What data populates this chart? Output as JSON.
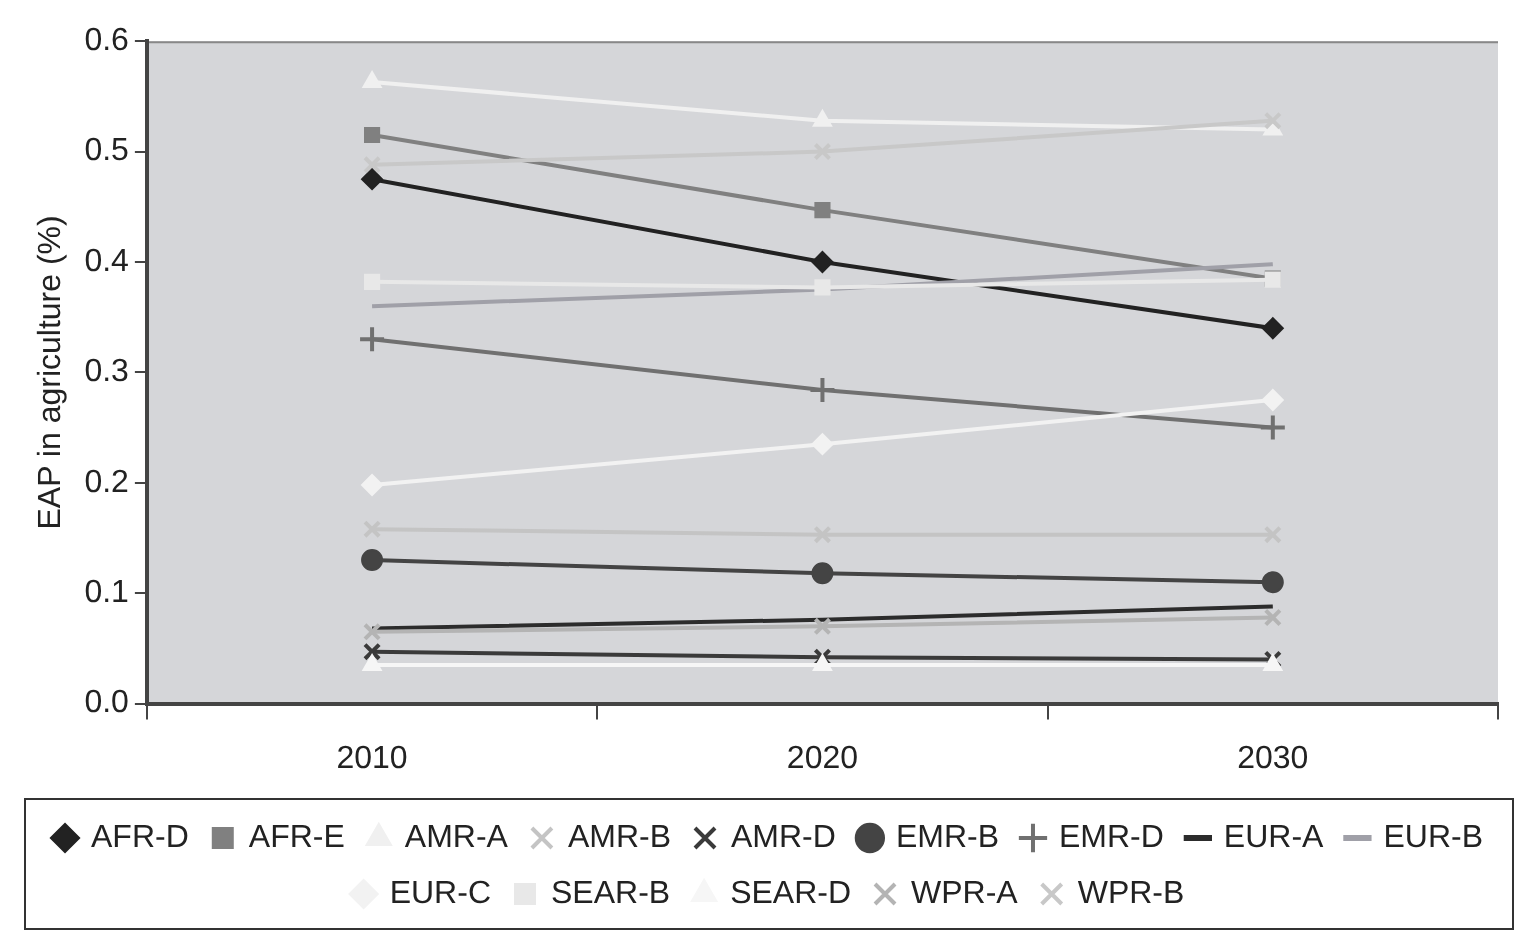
{
  "chart_data": {
    "type": "line",
    "ylabel": "EAP in agriculture (%)",
    "categories": [
      "2010",
      "2020",
      "2030"
    ],
    "ylim": [
      0,
      0.6
    ],
    "yticks": [
      {
        "value": 0,
        "label": "0.0"
      },
      {
        "value": 0.1,
        "label": "0.1"
      },
      {
        "value": 0.2,
        "label": "0.2"
      },
      {
        "value": 0.3,
        "label": "0.3"
      },
      {
        "value": 0.4,
        "label": "0.4"
      },
      {
        "value": 0.5,
        "label": "0.5"
      },
      {
        "value": 0.6,
        "label": "0.6"
      }
    ],
    "grid": false,
    "legend": "bottom",
    "line_style": "solid",
    "series": [
      {
        "name": "AFR-D",
        "color": "#222222",
        "marker": "diamond",
        "values": [
          0.475,
          0.4,
          0.34
        ]
      },
      {
        "name": "AFR-E",
        "color": "#808080",
        "marker": "square",
        "values": [
          0.515,
          0.447,
          0.385
        ]
      },
      {
        "name": "AMR-A",
        "color": "#f0f0f0",
        "marker": "triangle",
        "values": [
          0.563,
          0.528,
          0.52
        ]
      },
      {
        "name": "AMR-B",
        "color": "#c4c4c4",
        "marker": "cross",
        "values": [
          0.158,
          0.153,
          0.153
        ]
      },
      {
        "name": "AMR-D",
        "color": "#3a3a3a",
        "marker": "cross",
        "values": [
          0.047,
          0.042,
          0.04
        ]
      },
      {
        "name": "EMR-B",
        "color": "#444444",
        "marker": "circle",
        "values": [
          0.13,
          0.118,
          0.11
        ]
      },
      {
        "name": "EMR-D",
        "color": "#707070",
        "marker": "plus",
        "values": [
          0.33,
          0.284,
          0.25
        ]
      },
      {
        "name": "EUR-A",
        "color": "#2c2c2c",
        "marker": "none",
        "values": [
          0.068,
          0.076,
          0.088
        ]
      },
      {
        "name": "EUR-B",
        "color": "#a0a0a8",
        "marker": "none",
        "values": [
          0.36,
          0.375,
          0.398
        ]
      },
      {
        "name": "EUR-C",
        "color": "#f2f2f2",
        "marker": "diamond",
        "values": [
          0.198,
          0.235,
          0.275
        ]
      },
      {
        "name": "SEAR-B",
        "color": "#e8e8e8",
        "marker": "square",
        "values": [
          0.382,
          0.377,
          0.384
        ]
      },
      {
        "name": "SEAR-D",
        "color": "#f6f6f6",
        "marker": "triangle",
        "values": [
          0.035,
          0.035,
          0.035
        ]
      },
      {
        "name": "WPR-A",
        "color": "#b4b4b4",
        "marker": "cross",
        "values": [
          0.065,
          0.07,
          0.078
        ]
      },
      {
        "name": "WPR-B",
        "color": "#c8c8c8",
        "marker": "cross",
        "values": [
          0.488,
          0.5,
          0.528
        ]
      }
    ]
  }
}
